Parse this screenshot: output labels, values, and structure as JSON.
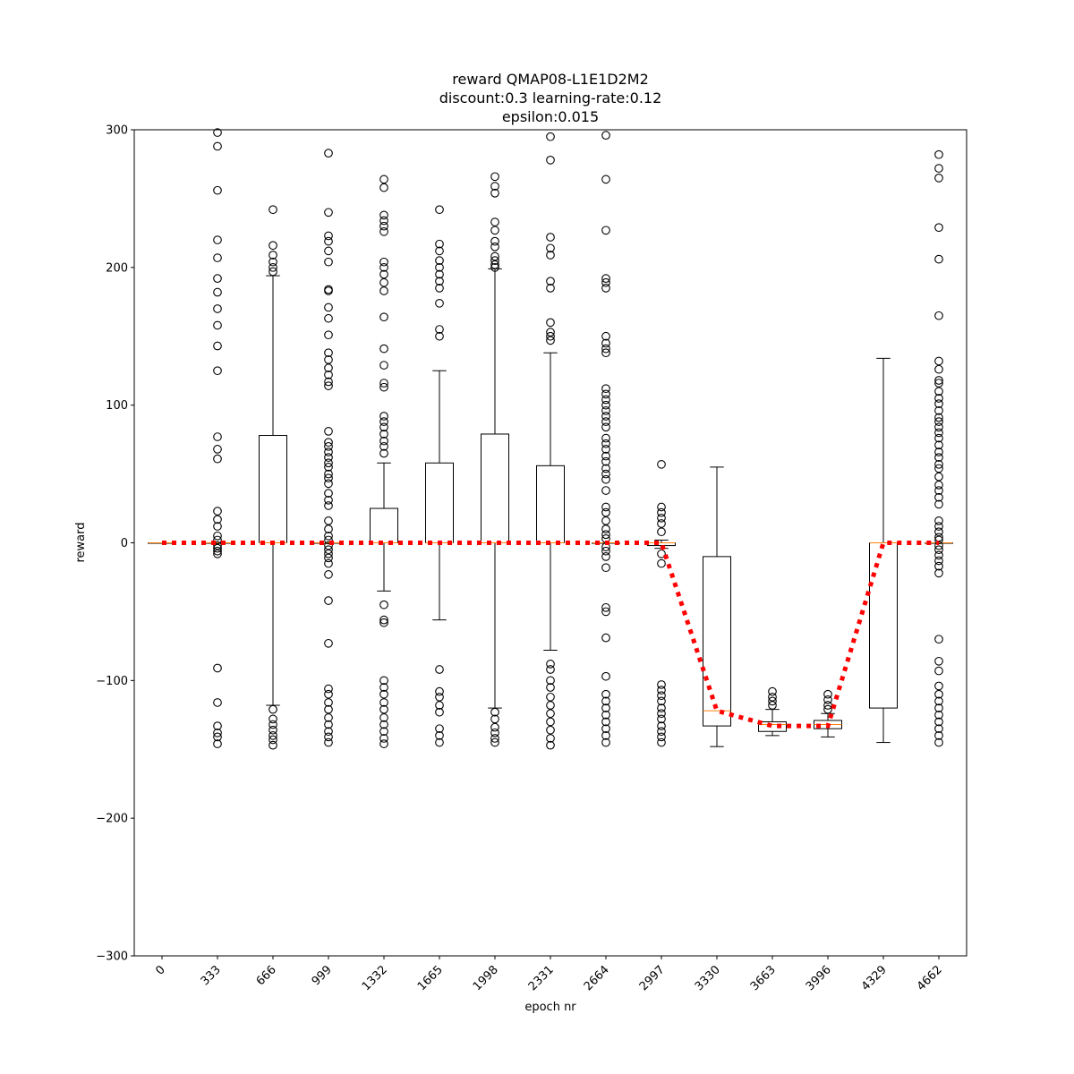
{
  "chart_data": {
    "type": "box",
    "title_lines": [
      "reward QMAP08-L1E1D2M2",
      "discount:0.3 learning-rate:0.12",
      "epsilon:0.015"
    ],
    "xlabel": "epoch nr",
    "ylabel": "reward",
    "ylim": [
      -300,
      300
    ],
    "yticks": [
      -300,
      -200,
      -100,
      0,
      100,
      200,
      300
    ],
    "categories": [
      "0",
      "333",
      "666",
      "999",
      "1332",
      "1665",
      "1998",
      "2331",
      "2664",
      "2997",
      "3330",
      "3663",
      "3996",
      "4329",
      "4662"
    ],
    "boxes": [
      {
        "q1": 0,
        "median": 0,
        "q3": 0,
        "whisker_low": 0,
        "whisker_high": 0,
        "outliers": []
      },
      {
        "q1": 0,
        "median": 0,
        "q3": 0,
        "whisker_low": 0,
        "whisker_high": 0,
        "outliers": [
          298,
          288,
          256,
          220,
          207,
          192,
          182,
          170,
          158,
          143,
          125,
          77,
          68,
          61,
          23,
          17,
          12,
          5,
          2,
          -2,
          -4,
          -6,
          -8,
          -91,
          -116,
          -133,
          -138,
          -141,
          -146
        ]
      },
      {
        "q1": 0,
        "median": 0,
        "q3": 78,
        "whisker_low": -118,
        "whisker_high": 194,
        "outliers": [
          242,
          216,
          209,
          204,
          200,
          197,
          -121,
          -128,
          -132,
          -136,
          -140,
          -143,
          -147
        ]
      },
      {
        "q1": 0,
        "median": 0,
        "q3": 0,
        "whisker_low": 0,
        "whisker_high": 0,
        "outliers": [
          283,
          240,
          223,
          219,
          212,
          204,
          184,
          183,
          171,
          163,
          151,
          138,
          133,
          127,
          122,
          117,
          114,
          81,
          73,
          70,
          66,
          62,
          58,
          55,
          50,
          47,
          43,
          36,
          31,
          27,
          16,
          10,
          5,
          2,
          -2,
          -5,
          -8,
          -11,
          -15,
          -23,
          -42,
          -73,
          -106,
          -110,
          -116,
          -121,
          -127,
          -132,
          -137,
          -141,
          -145
        ]
      },
      {
        "q1": 0,
        "median": 0,
        "q3": 25,
        "whisker_low": -35,
        "whisker_high": 58,
        "outliers": [
          264,
          258,
          238,
          234,
          230,
          226,
          204,
          200,
          195,
          189,
          183,
          164,
          141,
          129,
          116,
          113,
          92,
          88,
          84,
          79,
          74,
          70,
          65,
          -45,
          -56,
          -58,
          -100,
          -105,
          -110,
          -116,
          -121,
          -127,
          -132,
          -137,
          -142,
          -146
        ]
      },
      {
        "q1": 0,
        "median": 0,
        "q3": 58,
        "whisker_low": -56,
        "whisker_high": 125,
        "outliers": [
          242,
          217,
          212,
          205,
          200,
          195,
          190,
          185,
          174,
          155,
          150,
          -92,
          -108,
          -112,
          -118,
          -123,
          -135,
          -140,
          -145
        ]
      },
      {
        "q1": 0,
        "median": 0,
        "q3": 79,
        "whisker_low": -120,
        "whisker_high": 199,
        "outliers": [
          266,
          259,
          254,
          233,
          227,
          219,
          215,
          208,
          205,
          202,
          200,
          -123,
          -128,
          -134,
          -138,
          -142,
          -145
        ]
      },
      {
        "q1": 0,
        "median": 0,
        "q3": 56,
        "whisker_low": -78,
        "whisker_high": 138,
        "outliers": [
          295,
          278,
          222,
          214,
          209,
          190,
          185,
          160,
          153,
          150,
          147,
          -88,
          -92,
          -100,
          -105,
          -112,
          -118,
          -124,
          -130,
          -136,
          -142,
          -147
        ]
      },
      {
        "q1": 0,
        "median": 0,
        "q3": 0,
        "whisker_low": 0,
        "whisker_high": 0,
        "outliers": [
          296,
          264,
          227,
          192,
          189,
          185,
          150,
          145,
          141,
          138,
          112,
          108,
          104,
          100,
          96,
          92,
          88,
          84,
          76,
          72,
          68,
          63,
          59,
          54,
          50,
          46,
          38,
          26,
          22,
          16,
          10,
          6,
          3,
          -3,
          -6,
          -10,
          -18,
          -47,
          -50,
          -69,
          -97,
          -110,
          -115,
          -120,
          -125,
          -130,
          -135,
          -140,
          -145
        ]
      },
      {
        "q1": -2,
        "median": 0,
        "q3": 0,
        "whisker_low": -4,
        "whisker_high": 2,
        "outliers": [
          57,
          26,
          22,
          18,
          14,
          8,
          -8,
          -15,
          -103,
          -107,
          -111,
          -115,
          -120,
          -124,
          -128,
          -133,
          -137,
          -141,
          -145
        ]
      },
      {
        "q1": -133,
        "median": -122,
        "q3": -10,
        "whisker_low": -148,
        "whisker_high": 55,
        "outliers": []
      },
      {
        "q1": -137,
        "median": -132,
        "q3": -130,
        "whisker_low": -140,
        "whisker_high": -121,
        "outliers": [
          -108,
          -112,
          -115,
          -118
        ]
      },
      {
        "q1": -135,
        "median": -132,
        "q3": -129,
        "whisker_low": -141,
        "whisker_high": -124,
        "outliers": [
          -110,
          -114,
          -118,
          -121
        ]
      },
      {
        "q1": -120,
        "median": 0,
        "q3": 0,
        "whisker_low": -145,
        "whisker_high": 134,
        "outliers": []
      },
      {
        "q1": 0,
        "median": 0,
        "q3": 0,
        "whisker_low": 0,
        "whisker_high": 0,
        "outliers": [
          282,
          272,
          265,
          229,
          206,
          165,
          132,
          126,
          118,
          116,
          110,
          105,
          101,
          96,
          91,
          88,
          84,
          80,
          76,
          71,
          66,
          62,
          57,
          54,
          48,
          42,
          38,
          33,
          28,
          16,
          12,
          8,
          4,
          2,
          -2,
          -5,
          -9,
          -13,
          -17,
          -22,
          -70,
          -86,
          -93,
          -104,
          -110,
          -115,
          -120,
          -125,
          -130,
          -135,
          -140,
          -145
        ]
      }
    ],
    "mean_line": {
      "values": [
        0,
        0,
        0,
        0,
        0,
        0,
        0,
        0,
        0,
        0,
        -122,
        -133,
        -133,
        0,
        0
      ],
      "color": "#ff0000"
    },
    "box_color": "#000000",
    "median_color": "#ff7f0e",
    "grid": false
  }
}
